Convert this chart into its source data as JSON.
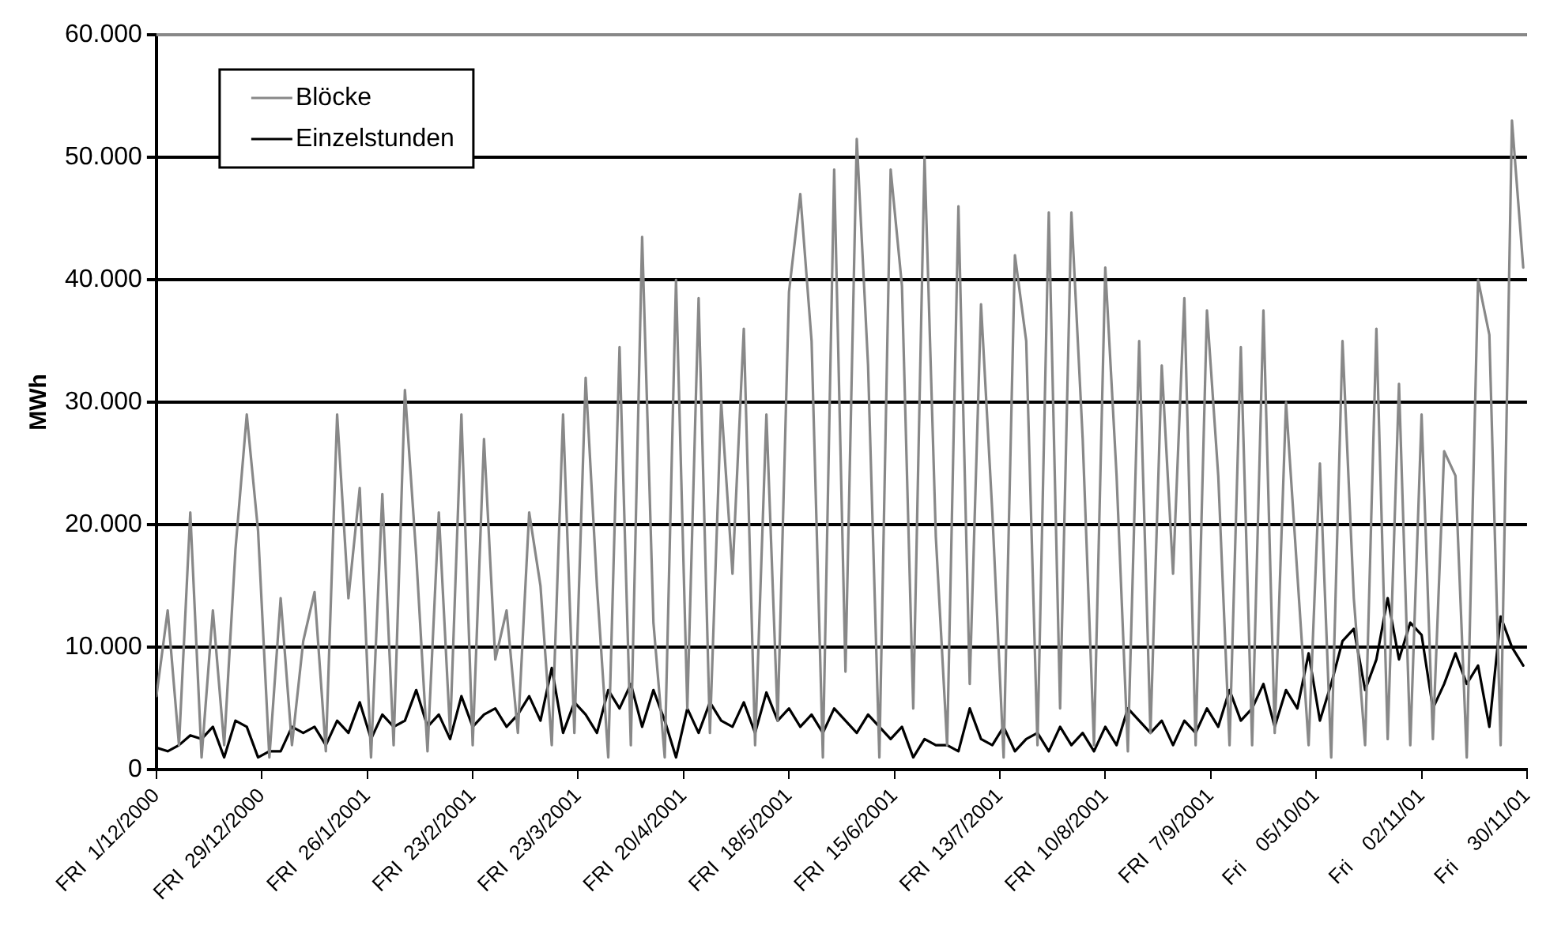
{
  "chart_data": {
    "type": "line",
    "ylabel": "MWh",
    "ylim": [
      0,
      60000
    ],
    "yticks": [
      {
        "value": 0,
        "label": "0"
      },
      {
        "value": 10000,
        "label": "10.000"
      },
      {
        "value": 20000,
        "label": "20.000"
      },
      {
        "value": 30000,
        "label": "30.000"
      },
      {
        "value": 40000,
        "label": "40.000"
      },
      {
        "value": 50000,
        "label": "50.000"
      },
      {
        "value": 60000,
        "label": "60.000"
      }
    ],
    "xlim": [
      "2000-12-01",
      "2001-11-30"
    ],
    "xticks": [
      {
        "value": "2000-12-01",
        "label": "FRI  1/12/2000"
      },
      {
        "value": "2000-12-29",
        "label": "FRI  29/12/2000"
      },
      {
        "value": "2001-01-26",
        "label": "FRI  26/1/2001"
      },
      {
        "value": "2001-02-23",
        "label": "FRI  23/2/2001"
      },
      {
        "value": "2001-03-23",
        "label": "FRI  23/3/2001"
      },
      {
        "value": "2001-04-20",
        "label": "FRI  20/4/2001"
      },
      {
        "value": "2001-05-18",
        "label": "FRI  18/5/2001"
      },
      {
        "value": "2001-06-15",
        "label": "FRI  15/6/2001"
      },
      {
        "value": "2001-07-13",
        "label": "FRI  13/7/2001"
      },
      {
        "value": "2001-08-10",
        "label": "FRI  10/8/2001"
      },
      {
        "value": "2001-09-07",
        "label": "FRI  7/9/2001"
      },
      {
        "value": "2001-10-05",
        "label": "Fri    05/10/01"
      },
      {
        "value": "2001-11-02",
        "label": "Fri    02/11/01"
      },
      {
        "value": "2001-11-30",
        "label": "Fri    30/11/01"
      }
    ],
    "x": [
      "2000-12-01",
      "2000-12-04",
      "2000-12-07",
      "2000-12-10",
      "2000-12-13",
      "2000-12-16",
      "2000-12-19",
      "2000-12-22",
      "2000-12-25",
      "2000-12-28",
      "2000-12-31",
      "2001-01-03",
      "2001-01-06",
      "2001-01-09",
      "2001-01-12",
      "2001-01-15",
      "2001-01-18",
      "2001-01-21",
      "2001-01-24",
      "2001-01-27",
      "2001-01-30",
      "2001-02-02",
      "2001-02-05",
      "2001-02-08",
      "2001-02-11",
      "2001-02-14",
      "2001-02-17",
      "2001-02-20",
      "2001-02-23",
      "2001-02-26",
      "2001-03-01",
      "2001-03-04",
      "2001-03-07",
      "2001-03-10",
      "2001-03-13",
      "2001-03-16",
      "2001-03-19",
      "2001-03-22",
      "2001-03-25",
      "2001-03-28",
      "2001-03-31",
      "2001-04-03",
      "2001-04-06",
      "2001-04-09",
      "2001-04-12",
      "2001-04-15",
      "2001-04-18",
      "2001-04-21",
      "2001-04-24",
      "2001-04-27",
      "2001-04-30",
      "2001-05-03",
      "2001-05-06",
      "2001-05-09",
      "2001-05-12",
      "2001-05-15",
      "2001-05-18",
      "2001-05-21",
      "2001-05-24",
      "2001-05-27",
      "2001-05-30",
      "2001-06-02",
      "2001-06-05",
      "2001-06-08",
      "2001-06-11",
      "2001-06-14",
      "2001-06-17",
      "2001-06-20",
      "2001-06-23",
      "2001-06-26",
      "2001-06-29",
      "2001-07-02",
      "2001-07-05",
      "2001-07-08",
      "2001-07-11",
      "2001-07-14",
      "2001-07-17",
      "2001-07-20",
      "2001-07-23",
      "2001-07-26",
      "2001-07-29",
      "2001-08-01",
      "2001-08-04",
      "2001-08-07",
      "2001-08-10",
      "2001-08-13",
      "2001-08-16",
      "2001-08-19",
      "2001-08-22",
      "2001-08-25",
      "2001-08-28",
      "2001-08-31",
      "2001-09-03",
      "2001-09-06",
      "2001-09-09",
      "2001-09-12",
      "2001-09-15",
      "2001-09-18",
      "2001-09-21",
      "2001-09-24",
      "2001-09-27",
      "2001-09-30",
      "2001-10-03",
      "2001-10-06",
      "2001-10-09",
      "2001-10-12",
      "2001-10-15",
      "2001-10-18",
      "2001-10-21",
      "2001-10-24",
      "2001-10-27",
      "2001-10-30",
      "2001-11-02",
      "2001-11-05",
      "2001-11-08",
      "2001-11-11",
      "2001-11-14",
      "2001-11-17",
      "2001-11-20",
      "2001-11-23",
      "2001-11-26",
      "2001-11-29"
    ],
    "series": [
      {
        "name": "Blöcke",
        "color": "#888888",
        "values": [
          6000,
          13000,
          2000,
          21000,
          1000,
          13000,
          2000,
          18000,
          29000,
          19500,
          1000,
          14000,
          2000,
          10500,
          14500,
          1500,
          29000,
          14000,
          23000,
          1000,
          22500,
          2000,
          31000,
          17500,
          1500,
          21000,
          3000,
          29000,
          2000,
          27000,
          9000,
          13000,
          3000,
          21000,
          15000,
          2000,
          29000,
          3000,
          32000,
          15000,
          1000,
          34500,
          2000,
          43500,
          12000,
          1000,
          40000,
          5000,
          38500,
          3000,
          30000,
          16000,
          36000,
          2000,
          29000,
          4000,
          39000,
          47000,
          35000,
          1000,
          49000,
          8000,
          51500,
          33000,
          1000,
          49000,
          39500,
          5000,
          50000,
          19000,
          2000,
          46000,
          7000,
          38000,
          21000,
          1000,
          42000,
          35000,
          2000,
          45500,
          5000,
          45500,
          27000,
          2000,
          41000,
          24000,
          1500,
          35000,
          3000,
          33000,
          16000,
          38500,
          2000,
          37500,
          24000,
          2000,
          34500,
          2000,
          37500,
          3000,
          30000,
          16000,
          2000,
          25000,
          1000,
          35000,
          14000,
          2000,
          36000,
          2500,
          31500,
          2000,
          29000,
          2500,
          26000,
          24000,
          1000,
          40000,
          35500,
          2000,
          53000,
          41000
        ]
      },
      {
        "name": "Einzelstunden",
        "color": "#000000",
        "values": [
          1800,
          1500,
          2000,
          2800,
          2500,
          3500,
          1000,
          4000,
          3500,
          1000,
          1500,
          1500,
          3500,
          3000,
          3500,
          2000,
          4000,
          3000,
          5500,
          2500,
          4500,
          3500,
          4000,
          6500,
          3500,
          4500,
          2500,
          6000,
          3500,
          4500,
          5000,
          3500,
          4500,
          6000,
          4000,
          8300,
          3000,
          5500,
          4500,
          3000,
          6500,
          5000,
          7000,
          3500,
          6500,
          4000,
          1000,
          5000,
          3000,
          5500,
          4000,
          3500,
          5500,
          3000,
          6300,
          4000,
          5000,
          3500,
          4500,
          3000,
          5000,
          4000,
          3000,
          4500,
          3500,
          2500,
          3500,
          1000,
          2500,
          2000,
          2000,
          1500,
          5000,
          2500,
          2000,
          3500,
          1500,
          2500,
          3000,
          1500,
          3500,
          2000,
          3000,
          1500,
          3500,
          2000,
          5000,
          4000,
          3000,
          4000,
          2000,
          4000,
          3000,
          5000,
          3500,
          6500,
          4000,
          5000,
          7000,
          3500,
          6500,
          5000,
          9500,
          4000,
          7000,
          10500,
          11500,
          6500,
          9000,
          14000,
          9000,
          12000,
          11000,
          5000,
          7000,
          9500,
          7000,
          8500,
          3500,
          12500,
          10000,
          8500
        ]
      }
    ],
    "grid": "y",
    "legend": "top left",
    "marker": "none",
    "line_style": "solid"
  }
}
